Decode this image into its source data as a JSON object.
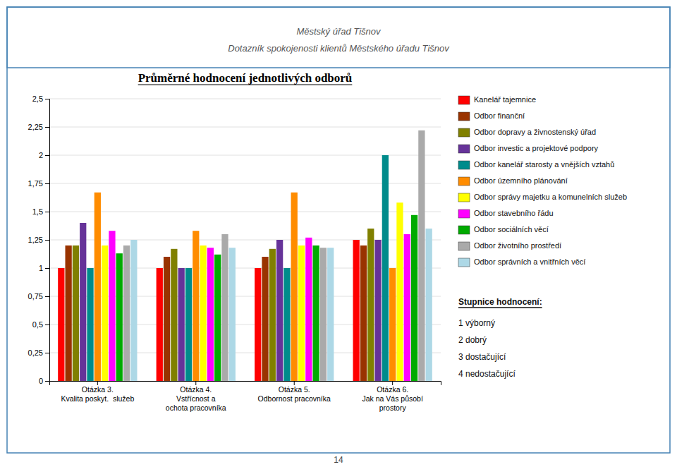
{
  "chart_data": {
    "type": "bar",
    "title": "Průměrné hodnocení jednotlivých odborů",
    "subtitle": [
      "Městský úřad Tišnov",
      "Dotazník spokojenosti klientů Městského úřadu Tišnov"
    ],
    "annotations": [
      "Stupnice hodnocení:",
      "1 výborný",
      "2 dobrý",
      "3 dostačující",
      "4 nedostačující",
      "14"
    ],
    "categories": [
      "Otázka 3.\nKvalita poskyt.  služeb",
      "Otázka 4.\nVstřícnost a\nochota pracovníka",
      "Otázka 5.\nOdbornost pracovníka",
      "Otázka 6.\nJak na Vás působí\nprostory"
    ],
    "series": [
      {
        "name": "Kanelář tajemnice",
        "color": "#FF0000",
        "values": [
          1.0,
          1.0,
          1.0,
          1.25
        ]
      },
      {
        "name": "Odbor finanční",
        "color": "#993300",
        "values": [
          1.2,
          1.1,
          1.1,
          1.2
        ]
      },
      {
        "name": "Odbor dopravy a živnostenský úřad",
        "color": "#808000",
        "values": [
          1.2,
          1.17,
          1.17,
          1.35
        ]
      },
      {
        "name": "Odbor investic a projektové podpory",
        "color": "#663399",
        "values": [
          1.4,
          1.0,
          1.25,
          1.25
        ]
      },
      {
        "name": "Odbor kanelář starosty a vnějších vztahů",
        "color": "#008B8B",
        "values": [
          1.0,
          1.0,
          1.0,
          2.0
        ]
      },
      {
        "name": "Odbor územního plánování",
        "color": "#FF8C00",
        "values": [
          1.67,
          1.33,
          1.67,
          1.0
        ]
      },
      {
        "name": "Odbor správy majetku a komunelních služeb",
        "color": "#FFFF00",
        "values": [
          1.2,
          1.2,
          1.2,
          1.58
        ]
      },
      {
        "name": "Odbor stavebního řádu",
        "color": "#FF00FF",
        "values": [
          1.33,
          1.18,
          1.27,
          1.3
        ]
      },
      {
        "name": "Odbor sociálních věcí",
        "color": "#00AA00",
        "values": [
          1.13,
          1.12,
          1.2,
          1.47
        ]
      },
      {
        "name": "Odbor životního prostředí",
        "color": "#AAAAAA",
        "values": [
          1.2,
          1.3,
          1.18,
          2.22
        ]
      },
      {
        "name": "Odbor správních a vnitřních věcí",
        "color": "#ADD8E6",
        "values": [
          1.25,
          1.18,
          1.18,
          1.35
        ]
      }
    ],
    "ylim": [
      0,
      2.5
    ],
    "yticks": [
      0,
      {
        "value": 0.25,
        "label": "0,25"
      },
      {
        "value": 0.5,
        "label": "0,5"
      },
      {
        "value": 0.75,
        "label": "0,75"
      },
      1,
      {
        "value": 1.25,
        "label": "1,25"
      },
      {
        "value": 1.5,
        "label": "1,5"
      },
      {
        "value": 1.75,
        "label": "1,75"
      },
      2,
      {
        "value": 2.25,
        "label": "2,25"
      },
      {
        "value": 2.5,
        "label": "2,5"
      }
    ],
    "grid": true,
    "legend": "right"
  }
}
